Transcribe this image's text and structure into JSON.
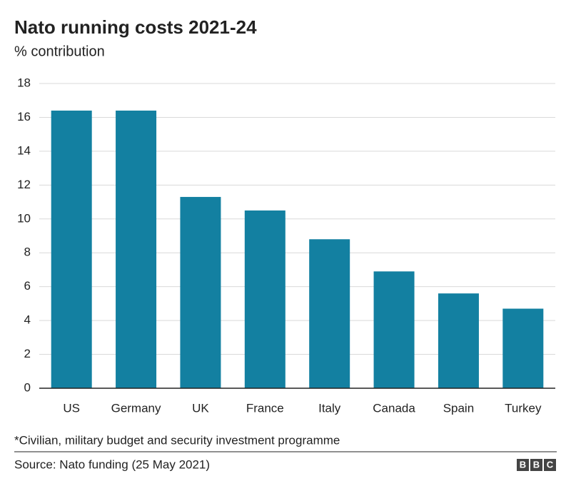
{
  "chart_data": {
    "type": "bar",
    "title": "Nato running costs 2021-24",
    "subtitle": "% contribution",
    "categories": [
      "US",
      "Germany",
      "UK",
      "France",
      "Italy",
      "Canada",
      "Spain",
      "Turkey"
    ],
    "values": [
      16.4,
      16.4,
      11.3,
      10.5,
      8.8,
      6.9,
      5.6,
      4.7
    ],
    "color": "#1380a1",
    "ylim": [
      0,
      18
    ],
    "yticks": [
      0,
      2,
      4,
      6,
      8,
      10,
      12,
      14,
      16,
      18
    ],
    "grid": true,
    "footnote": "*Civilian, military budget and security investment programme",
    "source": "Source: Nato funding (25 May 2021)",
    "logo": [
      "B",
      "B",
      "C"
    ]
  }
}
